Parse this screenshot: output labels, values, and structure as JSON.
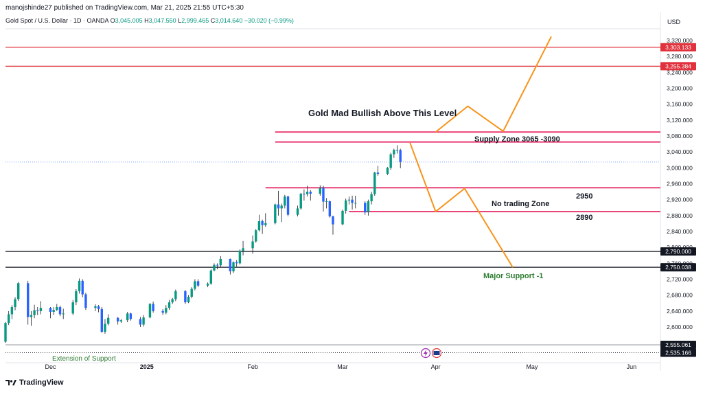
{
  "header": {
    "publisher": "manojshinde27 published on TradingView.com, Mar 21, 2025 21:55 UTC+5:30",
    "symbol": "Gold Spot / U.S. Dollar · 1D · OANDA",
    "o_label": "O",
    "o": "3,045.005",
    "h_label": "H",
    "h": "3,047.550",
    "l_label": "L",
    "l": "2,999.465",
    "c_label": "C",
    "c": "3,014.640",
    "change": "−30.020 (−0.99%)",
    "currency": "USD"
  },
  "brand": {
    "name": "TradingView",
    "logo": "tradingview-logo-icon"
  },
  "colors": {
    "up": "#089981",
    "down": "#2962ff",
    "red_line": "#e0313c",
    "pink_line": "#e8336d",
    "orange": "#f7931a",
    "support_text": "#2e7d32"
  },
  "chart_data": {
    "type": "candlestick",
    "y_range": [
      2535,
      3330
    ],
    "price_ticks": [
      3320,
      3280,
      3240,
      3200,
      3160,
      3120,
      3080,
      3040,
      3000,
      2960,
      2920,
      2880,
      2840,
      2800,
      2760,
      2720,
      2680,
      2640,
      2600
    ],
    "price_tick_labels": [
      "3,320.000",
      "3,280.000",
      "3,240.000",
      "3,200.000",
      "3,160.000",
      "3,120.000",
      "3,080.000",
      "3,040.000",
      "3,000.000",
      "2,960.000",
      "2,920.000",
      "2,880.000",
      "2,840.000",
      "2,800.000",
      "2,760.000",
      "2,720.000",
      "2,680.000",
      "2,640.000",
      "2,600.000"
    ],
    "time_labels": [
      "Dec",
      "2025",
      "Feb",
      "Mar",
      "Apr",
      "May",
      "Jun"
    ],
    "x_start": "2024-11-18",
    "x_end": "2025-06-10",
    "candles": [
      [
        "2024-11-18",
        2563,
        2613,
        2560,
        2610
      ],
      [
        "2024-11-19",
        2610,
        2640,
        2605,
        2632
      ],
      [
        "2024-11-20",
        2632,
        2655,
        2620,
        2650
      ],
      [
        "2024-11-21",
        2650,
        2675,
        2642,
        2670
      ],
      [
        "2024-11-22",
        2670,
        2713,
        2665,
        2710
      ],
      [
        "2024-11-25",
        2710,
        2716,
        2606,
        2625
      ],
      [
        "2024-11-26",
        2625,
        2640,
        2603,
        2630
      ],
      [
        "2024-11-27",
        2630,
        2656,
        2622,
        2642
      ],
      [
        "2024-11-28",
        2642,
        2650,
        2630,
        2640
      ],
      [
        "2024-11-29",
        2640,
        2665,
        2632,
        2648
      ],
      [
        "2024-12-02",
        2648,
        2650,
        2622,
        2638
      ],
      [
        "2024-12-03",
        2638,
        2650,
        2630,
        2643
      ],
      [
        "2024-12-04",
        2643,
        2658,
        2640,
        2650
      ],
      [
        "2024-12-05",
        2650,
        2654,
        2627,
        2632
      ],
      [
        "2024-12-06",
        2632,
        2646,
        2620,
        2634
      ],
      [
        "2024-12-09",
        2634,
        2668,
        2630,
        2662
      ],
      [
        "2024-12-10",
        2662,
        2695,
        2655,
        2690
      ],
      [
        "2024-12-11",
        2690,
        2722,
        2684,
        2716
      ],
      [
        "2024-12-12",
        2716,
        2720,
        2675,
        2682
      ],
      [
        "2024-12-13",
        2682,
        2686,
        2643,
        2648
      ],
      [
        "2024-12-16",
        2648,
        2657,
        2640,
        2652
      ],
      [
        "2024-12-17",
        2652,
        2655,
        2637,
        2645
      ],
      [
        "2024-12-18",
        2645,
        2650,
        2585,
        2588
      ],
      [
        "2024-12-19",
        2588,
        2620,
        2583,
        2608
      ],
      [
        "2024-12-20",
        2608,
        2632,
        2604,
        2623
      ],
      [
        "2024-12-23",
        2623,
        2625,
        2606,
        2614
      ],
      [
        "2024-12-24",
        2614,
        2620,
        2610,
        2617
      ],
      [
        "2024-12-26",
        2617,
        2638,
        2612,
        2634
      ],
      [
        "2024-12-27",
        2634,
        2636,
        2616,
        2620
      ],
      [
        "2024-12-30",
        2620,
        2625,
        2600,
        2606
      ],
      [
        "2024-12-31",
        2606,
        2630,
        2601,
        2624
      ],
      [
        "2025-01-02",
        2624,
        2660,
        2622,
        2658
      ],
      [
        "2025-01-03",
        2658,
        2664,
        2636,
        2640
      ],
      [
        "2025-01-06",
        2640,
        2645,
        2630,
        2636
      ],
      [
        "2025-01-07",
        2636,
        2655,
        2632,
        2648
      ],
      [
        "2025-01-08",
        2648,
        2668,
        2643,
        2662
      ],
      [
        "2025-01-09",
        2662,
        2673,
        2658,
        2670
      ],
      [
        "2025-01-10",
        2670,
        2694,
        2665,
        2690
      ],
      [
        "2025-01-13",
        2690,
        2693,
        2658,
        2662
      ],
      [
        "2025-01-14",
        2662,
        2680,
        2660,
        2676
      ],
      [
        "2025-01-15",
        2676,
        2700,
        2672,
        2696
      ],
      [
        "2025-01-16",
        2696,
        2720,
        2692,
        2715
      ],
      [
        "2025-01-17",
        2715,
        2720,
        2700,
        2704
      ],
      [
        "2025-01-20",
        2704,
        2712,
        2700,
        2709
      ],
      [
        "2025-01-21",
        2709,
        2745,
        2706,
        2742
      ],
      [
        "2025-01-22",
        2742,
        2760,
        2740,
        2756
      ],
      [
        "2025-01-23",
        2756,
        2760,
        2745,
        2755
      ],
      [
        "2025-01-24",
        2755,
        2778,
        2750,
        2771
      ],
      [
        "2025-01-27",
        2771,
        2772,
        2732,
        2740
      ],
      [
        "2025-01-28",
        2740,
        2765,
        2736,
        2763
      ],
      [
        "2025-01-29",
        2763,
        2768,
        2752,
        2760
      ],
      [
        "2025-01-30",
        2760,
        2795,
        2757,
        2792
      ],
      [
        "2025-01-31",
        2792,
        2816,
        2780,
        2798
      ],
      [
        "2025-02-03",
        2798,
        2830,
        2784,
        2815
      ],
      [
        "2025-02-04",
        2815,
        2846,
        2812,
        2843
      ],
      [
        "2025-02-05",
        2843,
        2882,
        2840,
        2866
      ],
      [
        "2025-02-06",
        2866,
        2870,
        2834,
        2856
      ],
      [
        "2025-02-07",
        2856,
        2886,
        2852,
        2861
      ],
      [
        "2025-02-10",
        2861,
        2910,
        2858,
        2908
      ],
      [
        "2025-02-11",
        2908,
        2942,
        2880,
        2898
      ],
      [
        "2025-02-12",
        2898,
        2910,
        2864,
        2905
      ],
      [
        "2025-02-13",
        2905,
        2932,
        2898,
        2928
      ],
      [
        "2025-02-14",
        2928,
        2930,
        2878,
        2882
      ],
      [
        "2025-02-17",
        2882,
        2905,
        2878,
        2898
      ],
      [
        "2025-02-18",
        2898,
        2937,
        2895,
        2935
      ],
      [
        "2025-02-19",
        2935,
        2946,
        2918,
        2934
      ],
      [
        "2025-02-20",
        2934,
        2955,
        2928,
        2940
      ],
      [
        "2025-02-21",
        2940,
        2944,
        2918,
        2935
      ],
      [
        "2025-02-24",
        2935,
        2956,
        2930,
        2950
      ],
      [
        "2025-02-25",
        2950,
        2955,
        2890,
        2915
      ],
      [
        "2025-02-26",
        2915,
        2924,
        2898,
        2916
      ],
      [
        "2025-02-27",
        2916,
        2918,
        2875,
        2878
      ],
      [
        "2025-02-28",
        2878,
        2880,
        2832,
        2858
      ],
      [
        "2025-03-03",
        2858,
        2895,
        2856,
        2892
      ],
      [
        "2025-03-04",
        2892,
        2923,
        2885,
        2918
      ],
      [
        "2025-03-05",
        2918,
        2928,
        2908,
        2920
      ],
      [
        "2025-03-06",
        2920,
        2930,
        2895,
        2912
      ],
      [
        "2025-03-07",
        2912,
        2930,
        2898,
        2912
      ],
      [
        "2025-03-10",
        2912,
        2916,
        2882,
        2888
      ],
      [
        "2025-03-11",
        2888,
        2920,
        2880,
        2916
      ],
      [
        "2025-03-12",
        2916,
        2940,
        2908,
        2934
      ],
      [
        "2025-03-13",
        2934,
        2990,
        2930,
        2988
      ],
      [
        "2025-03-14",
        2988,
        3005,
        2980,
        2985
      ],
      [
        "2025-03-17",
        2985,
        3002,
        2982,
        3000
      ],
      [
        "2025-03-18",
        3000,
        3038,
        2995,
        3034
      ],
      [
        "2025-03-19",
        3034,
        3048,
        3025,
        3045
      ],
      [
        "2025-03-20",
        3045,
        3057,
        3036,
        3045
      ],
      [
        "2025-03-21",
        3045,
        3048,
        2999,
        3015
      ]
    ],
    "last_price": 3014.64,
    "levels": [
      {
        "name": "level-3303",
        "value": 3303.133,
        "label": "3,303.133",
        "style": "red"
      },
      {
        "name": "level-3255",
        "value": 3255.384,
        "label": "3,255.384",
        "style": "red"
      },
      {
        "name": "level-2790",
        "value": 2790.0,
        "label": "2,790.000",
        "style": "black"
      },
      {
        "name": "level-2750",
        "value": 2750.038,
        "label": "2,750.038",
        "style": "black"
      },
      {
        "name": "level-2555",
        "value": 2555.061,
        "label": "2,555.061",
        "style": "gray"
      },
      {
        "name": "level-2535",
        "value": 2535.166,
        "label": "2,535.166",
        "style": "dotted"
      }
    ],
    "zones": [
      {
        "name": "supply-zone-top",
        "value": 3090,
        "from": "2025-02-10",
        "to": "2025-06-10"
      },
      {
        "name": "supply-zone-bottom",
        "value": 3065,
        "from": "2025-02-10",
        "to": "2025-06-10"
      },
      {
        "name": "zone-2950",
        "value": 2950,
        "from": "2025-02-07",
        "to": "2025-06-10"
      },
      {
        "name": "zone-2890",
        "value": 2890,
        "from": "2025-03-05",
        "to": "2025-06-10"
      }
    ],
    "paths": [
      {
        "name": "bull-path",
        "points": [
          [
            "2025-04-01",
            3090
          ],
          [
            "2025-04-11",
            3155
          ],
          [
            "2025-04-22",
            3092
          ],
          [
            "2025-05-07",
            3330
          ]
        ]
      },
      {
        "name": "bear-path",
        "points": [
          [
            "2025-03-24",
            3063
          ],
          [
            "2025-04-01",
            2890
          ],
          [
            "2025-04-10",
            2948
          ],
          [
            "2025-04-25",
            2750
          ]
        ]
      }
    ],
    "annotations": {
      "bull_level": "Gold Mad Bullish Above This Level",
      "supply_zone": "Supply Zone  3065 -3090",
      "zone_2950": "2950",
      "no_trading": "No trading  Zone",
      "zone_2890": "2890",
      "major_support": "Major Support -1",
      "extension_support": "Extension of Support"
    }
  }
}
